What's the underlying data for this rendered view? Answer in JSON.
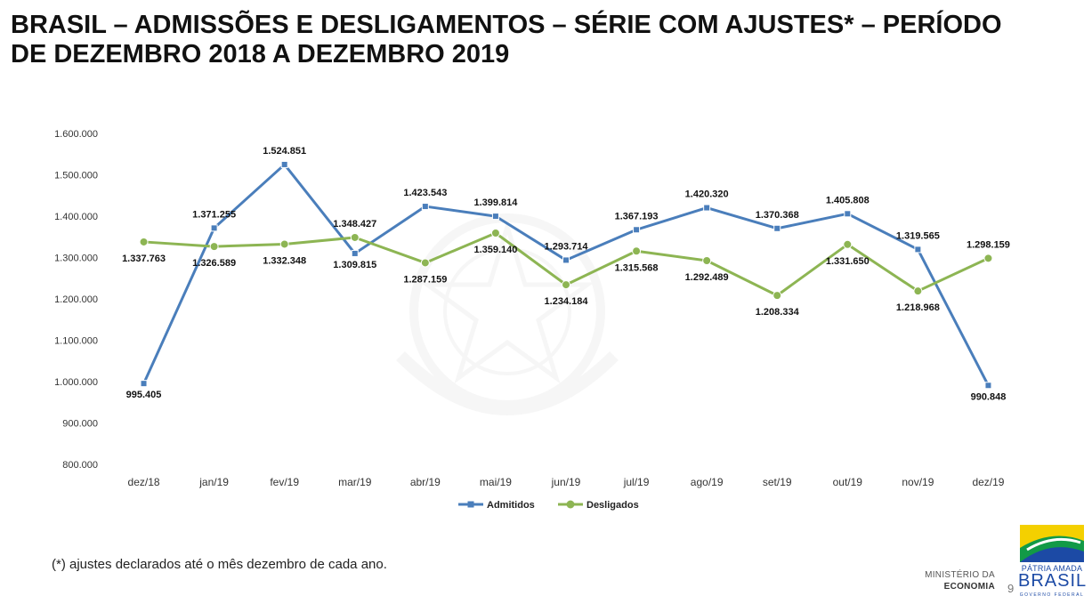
{
  "page": {
    "title_line1": "BRASIL – ADMISSÕES E DESLIGAMENTOS – SÉRIE COM AJUSTES* – PERÍODO",
    "title_line2": "DE DEZEMBRO 2018 A DEZEMBRO 2019",
    "footnote": "(*) ajustes declarados até o mês dezembro de cada ano.",
    "ministry_line1": "MINISTÉRIO DA",
    "ministry_line2": "ECONOMIA",
    "page_number": "9",
    "brand_slogan": "PÁTRIA AMADA",
    "brand_country": "BRASIL",
    "brand_gov": "GOVERNO FEDERAL"
  },
  "chart_data": {
    "type": "line",
    "title": "",
    "xlabel": "",
    "ylabel": "",
    "categories": [
      "dez/18",
      "jan/19",
      "fev/19",
      "mar/19",
      "abr/19",
      "mai/19",
      "jun/19",
      "jul/19",
      "ago/19",
      "set/19",
      "out/19",
      "nov/19",
      "dez/19"
    ],
    "ylim": [
      800000,
      1600000
    ],
    "yticks": [
      800000,
      900000,
      1000000,
      1100000,
      1200000,
      1300000,
      1400000,
      1500000,
      1600000
    ],
    "ytick_labels": [
      "800.000",
      "900.000",
      "1.000.000",
      "1.100.000",
      "1.200.000",
      "1.300.000",
      "1.400.000",
      "1.500.000",
      "1.600.000"
    ],
    "grid": false,
    "legend_position": "bottom",
    "series": [
      {
        "name": "Admitidos",
        "color": "#4a7ebb",
        "marker": "square",
        "values": [
          995405,
          1371255,
          1524851,
          1309815,
          1423543,
          1399814,
          1293714,
          1367193,
          1420320,
          1370368,
          1405808,
          1319565,
          990848
        ],
        "labels": [
          "995.405",
          "1.371.255",
          "1.524.851",
          "1.309.815",
          "1.423.543",
          "1.399.814",
          "1.293.714",
          "1.367.193",
          "1.420.320",
          "1.370.368",
          "1.405.808",
          "1.319.565",
          "990.848"
        ]
      },
      {
        "name": "Desligados",
        "color": "#8db553",
        "marker": "circle",
        "values": [
          1337763,
          1326589,
          1332348,
          1348427,
          1287159,
          1359140,
          1234184,
          1315568,
          1292489,
          1208334,
          1331650,
          1218968,
          1298159
        ],
        "labels": [
          "1.337.763",
          "1.326.589",
          "1.332.348",
          "1.348.427",
          "1.287.159",
          "1.359.140",
          "1.234.184",
          "1.315.568",
          "1.292.489",
          "1.208.334",
          "1.331.650",
          "1.218.968",
          "1.298.159"
        ]
      }
    ]
  }
}
